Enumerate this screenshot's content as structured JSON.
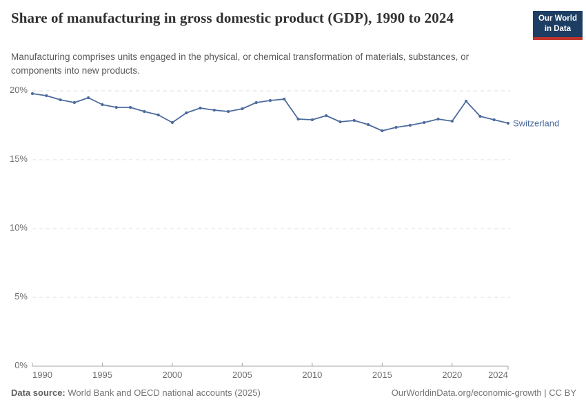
{
  "header": {
    "title": "Share of manufacturing in gross domestic product (GDP), 1990 to 2024",
    "subtitle": "Manufacturing comprises units engaged in the physical, or chemical transformation of materials, substances, or components into new products.",
    "logo": {
      "line1": "Our World",
      "line2": "in Data"
    }
  },
  "footer": {
    "source_label": "Data source:",
    "source_text": " World Bank and OECD national accounts (2025)",
    "rights": "OurWorldinData.org/economic-growth | CC BY"
  },
  "colors": {
    "line": "#4c6a9c",
    "entity_label": "#4c6a9c",
    "logo_bg": "#1d3d63",
    "logo_stripe": "#c0342b",
    "gridline": "#dcdcdc",
    "axis": "#a3a3a3",
    "tick_text": "#6e6e6e"
  },
  "chart_data": {
    "type": "line",
    "title": "Share of manufacturing in gross domestic product (GDP), 1990 to 2024",
    "subtitle": "Manufacturing comprises units engaged in the physical, or chemical transformation of materials, substances, or components into new products.",
    "xlabel": "",
    "ylabel": "",
    "xlim": [
      1990,
      2024
    ],
    "ylim": [
      0,
      20
    ],
    "grid": "horizontal-dashed",
    "legend": "end-of-line-label",
    "yticks": [
      {
        "value": 0,
        "label": "0%"
      },
      {
        "value": 5,
        "label": "5%"
      },
      {
        "value": 10,
        "label": "10%"
      },
      {
        "value": 15,
        "label": "15%"
      },
      {
        "value": 20,
        "label": "20%"
      }
    ],
    "xticks": [
      {
        "value": 1990,
        "label": "1990"
      },
      {
        "value": 1995,
        "label": "1995"
      },
      {
        "value": 2000,
        "label": "2000"
      },
      {
        "value": 2005,
        "label": "2005"
      },
      {
        "value": 2010,
        "label": "2010"
      },
      {
        "value": 2015,
        "label": "2015"
      },
      {
        "value": 2020,
        "label": "2020"
      },
      {
        "value": 2024,
        "label": "2024"
      }
    ],
    "series": [
      {
        "name": "Switzerland",
        "color": "#4c6a9c",
        "x": [
          1990,
          1991,
          1992,
          1993,
          1994,
          1995,
          1996,
          1997,
          1998,
          1999,
          2000,
          2001,
          2002,
          2003,
          2004,
          2005,
          2006,
          2007,
          2008,
          2009,
          2010,
          2011,
          2012,
          2013,
          2014,
          2015,
          2016,
          2017,
          2018,
          2019,
          2020,
          2021,
          2022,
          2023,
          2024
        ],
        "values": [
          19.8,
          19.65,
          19.35,
          19.15,
          19.5,
          19.0,
          18.8,
          18.8,
          18.5,
          18.25,
          17.7,
          18.4,
          18.75,
          18.6,
          18.5,
          18.7,
          19.15,
          19.3,
          19.4,
          17.95,
          17.9,
          18.2,
          17.75,
          17.85,
          17.55,
          17.1,
          17.35,
          17.5,
          17.7,
          17.95,
          17.8,
          19.25,
          18.15,
          17.9,
          17.65
        ]
      }
    ]
  }
}
